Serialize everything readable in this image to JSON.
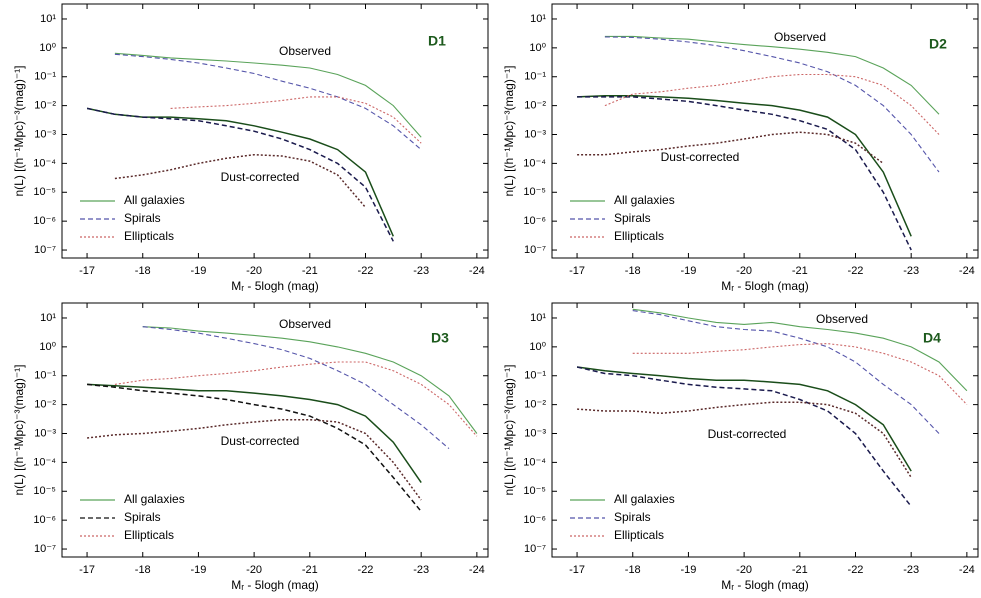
{
  "chart_data": [
    {
      "type": "line",
      "panel_label": "D1",
      "observed_label": "Observed",
      "dust_label": "Dust-corrected",
      "xlabel": "Mᵣ - 5logh  (mag)",
      "ylabel": "n(L)  [(h⁻¹Mpc)⁻³(mag)⁻¹]",
      "log_y": true,
      "xlim": [
        -16.55,
        -24.2
      ],
      "ylim": [
        5.3e-08,
        33
      ],
      "xticks": [
        -17,
        -18,
        -19,
        -20,
        -21,
        -22,
        -23,
        -24
      ],
      "yticks": [
        {
          "value": 10,
          "label": "10¹"
        },
        {
          "value": 1,
          "label": "10⁰"
        },
        {
          "value": 0.1,
          "label": "10⁻¹"
        },
        {
          "value": 0.01,
          "label": "10⁻²"
        },
        {
          "value": 0.001,
          "label": "10⁻³"
        },
        {
          "value": 0.0001,
          "label": "10⁻⁴"
        },
        {
          "value": 1e-05,
          "label": "10⁻⁵"
        },
        {
          "value": 1e-06,
          "label": "10⁻⁶"
        },
        {
          "value": 1e-07,
          "label": "10⁻⁷"
        }
      ],
      "x": [
        -17,
        -17.5,
        -18,
        -18.5,
        -19,
        -19.5,
        -20,
        -20.5,
        -21,
        -21.5,
        -22,
        -22.5,
        -23,
        -23.5,
        -24
      ],
      "series": [
        {
          "name": "All galaxies",
          "color": "#5aa35a",
          "dust_color": "#1a4d1a",
          "dash": "none",
          "observed": [
            null,
            0.65,
            0.55,
            0.45,
            0.4,
            0.35,
            0.3,
            0.25,
            0.2,
            0.12,
            0.05,
            0.01,
            0.0008,
            null,
            null
          ],
          "dust_corrected": [
            0.008,
            0.005,
            0.004,
            0.004,
            0.0035,
            0.003,
            0.002,
            0.0012,
            0.0007,
            0.0003,
            5e-05,
            3e-07,
            null,
            null,
            null
          ]
        },
        {
          "name": "Spirals",
          "color": "#5555aa",
          "dust_color": "#1a1a4d",
          "dash": "5,3",
          "observed": [
            null,
            0.6,
            0.5,
            0.4,
            0.3,
            0.2,
            0.13,
            0.07,
            0.04,
            0.02,
            0.008,
            0.002,
            0.0003,
            null,
            null
          ],
          "dust_corrected": [
            0.008,
            0.005,
            0.004,
            0.0035,
            0.003,
            0.002,
            0.0013,
            0.0007,
            0.0003,
            0.0001,
            1.5e-05,
            2e-07,
            null,
            null,
            null
          ]
        },
        {
          "name": "Ellipticals",
          "color": "#cc6666",
          "dust_color": "#5a2a2a",
          "dash": "2,2",
          "observed": [
            null,
            null,
            null,
            0.008,
            0.009,
            0.01,
            0.012,
            0.015,
            0.02,
            0.02,
            0.012,
            0.004,
            0.0005,
            null,
            null
          ],
          "dust_corrected": [
            null,
            3e-05,
            4e-05,
            6e-05,
            0.0001,
            0.00015,
            0.0002,
            0.00018,
            0.00012,
            4e-05,
            3e-06,
            null,
            null,
            null,
            null
          ]
        }
      ]
    },
    {
      "type": "line",
      "panel_label": "D2",
      "observed_label": "Observed",
      "dust_label": "Dust-corrected",
      "xlabel": "Mᵣ - 5logh  (mag)",
      "ylabel": "n(L)  [(h⁻¹Mpc)⁻³(mag)⁻¹]",
      "log_y": true,
      "xlim": [
        -16.55,
        -24.2
      ],
      "ylim": [
        5.3e-08,
        33
      ],
      "xticks": [
        -17,
        -18,
        -19,
        -20,
        -21,
        -22,
        -23,
        -24
      ],
      "yticks": [
        {
          "value": 10,
          "label": "10¹"
        },
        {
          "value": 1,
          "label": "10⁰"
        },
        {
          "value": 0.1,
          "label": "10⁻¹"
        },
        {
          "value": 0.01,
          "label": "10⁻²"
        },
        {
          "value": 0.001,
          "label": "10⁻³"
        },
        {
          "value": 0.0001,
          "label": "10⁻⁴"
        },
        {
          "value": 1e-05,
          "label": "10⁻⁵"
        },
        {
          "value": 1e-06,
          "label": "10⁻⁶"
        },
        {
          "value": 1e-07,
          "label": "10⁻⁷"
        }
      ],
      "x": [
        -17,
        -17.5,
        -18,
        -18.5,
        -19,
        -19.5,
        -20,
        -20.5,
        -21,
        -21.5,
        -22,
        -22.5,
        -23,
        -23.5,
        -24
      ],
      "series": [
        {
          "name": "All galaxies",
          "color": "#5aa35a",
          "dust_color": "#1a4d1a",
          "dash": "none",
          "observed": [
            null,
            2.5,
            2.5,
            2.2,
            2.0,
            1.6,
            1.3,
            1.1,
            0.9,
            0.7,
            0.5,
            0.2,
            0.05,
            0.005,
            null
          ],
          "dust_corrected": [
            0.02,
            0.022,
            0.022,
            0.02,
            0.018,
            0.015,
            0.012,
            0.01,
            0.007,
            0.004,
            0.001,
            5e-05,
            3e-07,
            null,
            null
          ]
        },
        {
          "name": "Spirals",
          "color": "#5555aa",
          "dust_color": "#1a1a4d",
          "dash": "5,3",
          "observed": [
            null,
            2.4,
            2.3,
            2,
            1.6,
            1.2,
            0.8,
            0.5,
            0.3,
            0.15,
            0.05,
            0.01,
            0.001,
            5e-05,
            null
          ],
          "dust_corrected": [
            0.02,
            0.02,
            0.02,
            0.017,
            0.014,
            0.01,
            0.007,
            0.005,
            0.003,
            0.0015,
            0.0003,
            1e-05,
            1e-07,
            null,
            null
          ]
        },
        {
          "name": "Ellipticals",
          "color": "#cc6666",
          "dust_color": "#5a2a2a",
          "dash": "2,2",
          "observed": [
            null,
            0.01,
            0.025,
            0.03,
            0.04,
            0.05,
            0.07,
            0.1,
            0.12,
            0.12,
            0.1,
            0.05,
            0.01,
            0.001,
            null
          ],
          "dust_corrected": [
            0.0002,
            0.0002,
            0.00025,
            0.0003,
            0.0004,
            0.0005,
            0.0007,
            0.001,
            0.0012,
            0.001,
            0.0005,
            0.0001,
            null,
            null,
            null
          ]
        }
      ]
    },
    {
      "type": "line",
      "panel_label": "D3",
      "observed_label": "Observed",
      "dust_label": "Dust-corrected",
      "xlabel": "Mᵣ - 5logh  (mag)",
      "ylabel": "n(L)  [(h⁻¹Mpc)⁻³(mag)⁻¹]",
      "log_y": true,
      "xlim": [
        -16.55,
        -24.2
      ],
      "ylim": [
        5.3e-08,
        33
      ],
      "xticks": [
        -17,
        -18,
        -19,
        -20,
        -21,
        -22,
        -23,
        -24
      ],
      "yticks": [
        {
          "value": 10,
          "label": "10¹"
        },
        {
          "value": 1,
          "label": "10⁰"
        },
        {
          "value": 0.1,
          "label": "10⁻¹"
        },
        {
          "value": 0.01,
          "label": "10⁻²"
        },
        {
          "value": 0.001,
          "label": "10⁻³"
        },
        {
          "value": 0.0001,
          "label": "10⁻⁴"
        },
        {
          "value": 1e-05,
          "label": "10⁻⁵"
        },
        {
          "value": 1e-06,
          "label": "10⁻⁶"
        },
        {
          "value": 1e-07,
          "label": "10⁻⁷"
        }
      ],
      "x": [
        -17,
        -17.5,
        -18,
        -18.5,
        -19,
        -19.5,
        -20,
        -20.5,
        -21,
        -21.5,
        -22,
        -22.5,
        -23,
        -23.5,
        -24
      ],
      "series": [
        {
          "name": "All galaxies",
          "color": "#5aa35a",
          "dust_color": "#1a4d1a",
          "dash": "none",
          "observed": [
            null,
            null,
            5,
            4.5,
            3.5,
            3,
            2.5,
            2,
            1.5,
            1.0,
            0.6,
            0.3,
            0.1,
            0.02,
            0.001
          ],
          "dust_corrected": [
            0.05,
            0.045,
            0.04,
            0.035,
            0.03,
            0.03,
            0.025,
            0.02,
            0.015,
            0.01,
            0.004,
            0.0005,
            2e-05,
            null,
            null
          ]
        },
        {
          "name": "Spirals",
          "color": "#5555aa",
          "dust_color": "#111111",
          "dash": "5,3",
          "observed": [
            null,
            null,
            5,
            4,
            3,
            2,
            1.3,
            0.8,
            0.4,
            0.15,
            0.05,
            0.01,
            0.002,
            0.0003,
            null
          ],
          "dust_corrected": [
            0.05,
            0.04,
            0.03,
            0.025,
            0.02,
            0.015,
            0.01,
            0.007,
            0.004,
            0.0015,
            0.0004,
            3e-05,
            2e-06,
            null,
            null
          ]
        },
        {
          "name": "Ellipticals",
          "color": "#cc6666",
          "dust_color": "#5a2a2a",
          "dash": "2,2",
          "observed": [
            null,
            0.05,
            0.07,
            0.08,
            0.1,
            0.12,
            0.15,
            0.2,
            0.25,
            0.3,
            0.3,
            0.15,
            0.05,
            0.01,
            0.0008
          ],
          "dust_corrected": [
            0.0007,
            0.0009,
            0.001,
            0.0012,
            0.0015,
            0.002,
            0.0025,
            0.003,
            0.003,
            0.0025,
            0.001,
            0.0001,
            5e-06,
            null,
            null
          ]
        }
      ]
    },
    {
      "type": "line",
      "panel_label": "D4",
      "observed_label": "Observed",
      "dust_label": "Dust-corrected",
      "xlabel": "Mᵣ - 5logh  (mag)",
      "ylabel": "n(L)  [(h⁻¹Mpc)⁻³(mag)⁻¹]",
      "log_y": true,
      "xlim": [
        -16.55,
        -24.2
      ],
      "ylim": [
        5.3e-08,
        33
      ],
      "xticks": [
        -17,
        -18,
        -19,
        -20,
        -21,
        -22,
        -23,
        -24
      ],
      "yticks": [
        {
          "value": 10,
          "label": "10¹"
        },
        {
          "value": 1,
          "label": "10⁰"
        },
        {
          "value": 0.1,
          "label": "10⁻¹"
        },
        {
          "value": 0.01,
          "label": "10⁻²"
        },
        {
          "value": 0.001,
          "label": "10⁻³"
        },
        {
          "value": 0.0001,
          "label": "10⁻⁴"
        },
        {
          "value": 1e-05,
          "label": "10⁻⁵"
        },
        {
          "value": 1e-06,
          "label": "10⁻⁶"
        },
        {
          "value": 1e-07,
          "label": "10⁻⁷"
        }
      ],
      "x": [
        -17,
        -17.5,
        -18,
        -18.5,
        -19,
        -19.5,
        -20,
        -20.5,
        -21,
        -21.5,
        -22,
        -22.5,
        -23,
        -23.5,
        -24
      ],
      "series": [
        {
          "name": "All galaxies",
          "color": "#5aa35a",
          "dust_color": "#1a4d1a",
          "dash": "none",
          "observed": [
            null,
            null,
            20,
            15,
            10,
            7,
            6,
            7,
            5,
            4,
            3,
            2,
            1,
            0.3,
            0.03
          ],
          "dust_corrected": [
            0.2,
            0.15,
            0.12,
            0.1,
            0.08,
            0.07,
            0.07,
            0.06,
            0.05,
            0.03,
            0.01,
            0.002,
            5e-05,
            null,
            null
          ]
        },
        {
          "name": "Spirals",
          "color": "#5555aa",
          "dust_color": "#1a1a4d",
          "dash": "5,3",
          "observed": [
            null,
            null,
            18,
            13,
            8,
            5,
            4,
            3.5,
            2,
            1,
            0.3,
            0.05,
            0.01,
            0.001,
            null
          ],
          "dust_corrected": [
            0.2,
            0.12,
            0.1,
            0.07,
            0.05,
            0.04,
            0.035,
            0.03,
            0.015,
            0.006,
            0.001,
            5e-05,
            3e-06,
            null,
            null
          ]
        },
        {
          "name": "Ellipticals",
          "color": "#cc6666",
          "dust_color": "#5a2a2a",
          "dash": "2,2",
          "observed": [
            null,
            null,
            0.6,
            0.6,
            0.6,
            0.7,
            0.8,
            1.0,
            1.2,
            1.3,
            1.0,
            0.6,
            0.3,
            0.1,
            0.01
          ],
          "dust_corrected": [
            0.007,
            0.006,
            0.006,
            0.005,
            0.006,
            0.008,
            0.01,
            0.012,
            0.012,
            0.01,
            0.005,
            0.001,
            3e-05,
            null,
            null
          ]
        }
      ]
    }
  ]
}
